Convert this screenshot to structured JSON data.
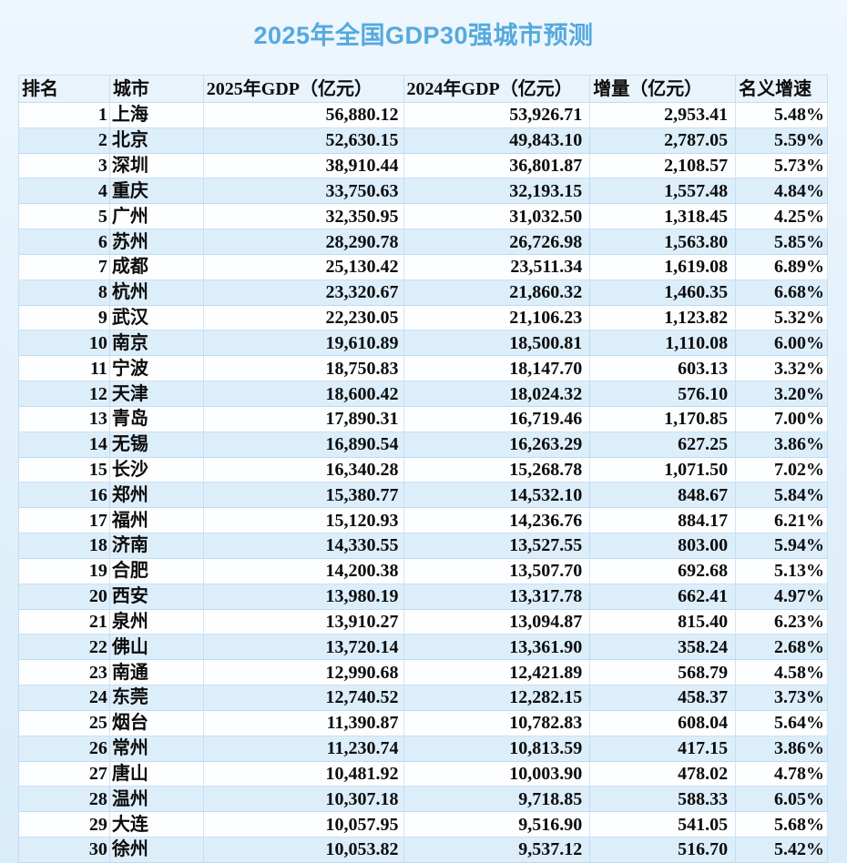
{
  "title": "2025年全国GDP30强城市预测",
  "colors": {
    "title_blue": "#55a9de",
    "page_bg_top": "#eef7fd",
    "page_bg_bottom": "#d9ecfa",
    "row_stripe_blue": "#ddeefb",
    "row_white": "#fdfeff",
    "header_bg": "#e9f3fc",
    "grid_line": "#b0cde7",
    "text": "#0c0c0c"
  },
  "chart_data": {
    "type": "table",
    "title": "2025年全国GDP30强城市预测",
    "columns": [
      "排名",
      "城市",
      "2025年GDP（亿元）",
      "2024年GDP（亿元）",
      "增量（亿元）",
      "名义增速"
    ],
    "column_keys": [
      "rank",
      "city",
      "gdp2025",
      "gdp2024",
      "increment",
      "growth"
    ],
    "rows": [
      {
        "rank": "1",
        "city": "上海",
        "gdp2025": "56,880.12",
        "gdp2024": "53,926.71",
        "increment": "2,953.41",
        "growth": "5.48%"
      },
      {
        "rank": "2",
        "city": "北京",
        "gdp2025": "52,630.15",
        "gdp2024": "49,843.10",
        "increment": "2,787.05",
        "growth": "5.59%"
      },
      {
        "rank": "3",
        "city": "深圳",
        "gdp2025": "38,910.44",
        "gdp2024": "36,801.87",
        "increment": "2,108.57",
        "growth": "5.73%"
      },
      {
        "rank": "4",
        "city": "重庆",
        "gdp2025": "33,750.63",
        "gdp2024": "32,193.15",
        "increment": "1,557.48",
        "growth": "4.84%"
      },
      {
        "rank": "5",
        "city": "广州",
        "gdp2025": "32,350.95",
        "gdp2024": "31,032.50",
        "increment": "1,318.45",
        "growth": "4.25%"
      },
      {
        "rank": "6",
        "city": "苏州",
        "gdp2025": "28,290.78",
        "gdp2024": "26,726.98",
        "increment": "1,563.80",
        "growth": "5.85%"
      },
      {
        "rank": "7",
        "city": "成都",
        "gdp2025": "25,130.42",
        "gdp2024": "23,511.34",
        "increment": "1,619.08",
        "growth": "6.89%"
      },
      {
        "rank": "8",
        "city": "杭州",
        "gdp2025": "23,320.67",
        "gdp2024": "21,860.32",
        "increment": "1,460.35",
        "growth": "6.68%"
      },
      {
        "rank": "9",
        "city": "武汉",
        "gdp2025": "22,230.05",
        "gdp2024": "21,106.23",
        "increment": "1,123.82",
        "growth": "5.32%"
      },
      {
        "rank": "10",
        "city": "南京",
        "gdp2025": "19,610.89",
        "gdp2024": "18,500.81",
        "increment": "1,110.08",
        "growth": "6.00%"
      },
      {
        "rank": "11",
        "city": "宁波",
        "gdp2025": "18,750.83",
        "gdp2024": "18,147.70",
        "increment": "603.13",
        "growth": "3.32%"
      },
      {
        "rank": "12",
        "city": "天津",
        "gdp2025": "18,600.42",
        "gdp2024": "18,024.32",
        "increment": "576.10",
        "growth": "3.20%"
      },
      {
        "rank": "13",
        "city": "青岛",
        "gdp2025": "17,890.31",
        "gdp2024": "16,719.46",
        "increment": "1,170.85",
        "growth": "7.00%"
      },
      {
        "rank": "14",
        "city": "无锡",
        "gdp2025": "16,890.54",
        "gdp2024": "16,263.29",
        "increment": "627.25",
        "growth": "3.86%"
      },
      {
        "rank": "15",
        "city": "长沙",
        "gdp2025": "16,340.28",
        "gdp2024": "15,268.78",
        "increment": "1,071.50",
        "growth": "7.02%"
      },
      {
        "rank": "16",
        "city": "郑州",
        "gdp2025": "15,380.77",
        "gdp2024": "14,532.10",
        "increment": "848.67",
        "growth": "5.84%"
      },
      {
        "rank": "17",
        "city": "福州",
        "gdp2025": "15,120.93",
        "gdp2024": "14,236.76",
        "increment": "884.17",
        "growth": "6.21%"
      },
      {
        "rank": "18",
        "city": "济南",
        "gdp2025": "14,330.55",
        "gdp2024": "13,527.55",
        "increment": "803.00",
        "growth": "5.94%"
      },
      {
        "rank": "19",
        "city": "合肥",
        "gdp2025": "14,200.38",
        "gdp2024": "13,507.70",
        "increment": "692.68",
        "growth": "5.13%"
      },
      {
        "rank": "20",
        "city": "西安",
        "gdp2025": "13,980.19",
        "gdp2024": "13,317.78",
        "increment": "662.41",
        "growth": "4.97%"
      },
      {
        "rank": "21",
        "city": "泉州",
        "gdp2025": "13,910.27",
        "gdp2024": "13,094.87",
        "increment": "815.40",
        "growth": "6.23%"
      },
      {
        "rank": "22",
        "city": "佛山",
        "gdp2025": "13,720.14",
        "gdp2024": "13,361.90",
        "increment": "358.24",
        "growth": "2.68%"
      },
      {
        "rank": "23",
        "city": "南通",
        "gdp2025": "12,990.68",
        "gdp2024": "12,421.89",
        "increment": "568.79",
        "growth": "4.58%"
      },
      {
        "rank": "24",
        "city": "东莞",
        "gdp2025": "12,740.52",
        "gdp2024": "12,282.15",
        "increment": "458.37",
        "growth": "3.73%"
      },
      {
        "rank": "25",
        "city": "烟台",
        "gdp2025": "11,390.87",
        "gdp2024": "10,782.83",
        "increment": "608.04",
        "growth": "5.64%"
      },
      {
        "rank": "26",
        "city": "常州",
        "gdp2025": "11,230.74",
        "gdp2024": "10,813.59",
        "increment": "417.15",
        "growth": "3.86%"
      },
      {
        "rank": "27",
        "city": "唐山",
        "gdp2025": "10,481.92",
        "gdp2024": "10,003.90",
        "increment": "478.02",
        "growth": "4.78%"
      },
      {
        "rank": "28",
        "city": "温州",
        "gdp2025": "10,307.18",
        "gdp2024": "9,718.85",
        "increment": "588.33",
        "growth": "6.05%"
      },
      {
        "rank": "29",
        "city": "大连",
        "gdp2025": "10,057.95",
        "gdp2024": "9,516.90",
        "increment": "541.05",
        "growth": "5.68%"
      },
      {
        "rank": "30",
        "city": "徐州",
        "gdp2025": "10,053.82",
        "gdp2024": "9,537.12",
        "increment": "516.70",
        "growth": "5.42%"
      }
    ]
  }
}
